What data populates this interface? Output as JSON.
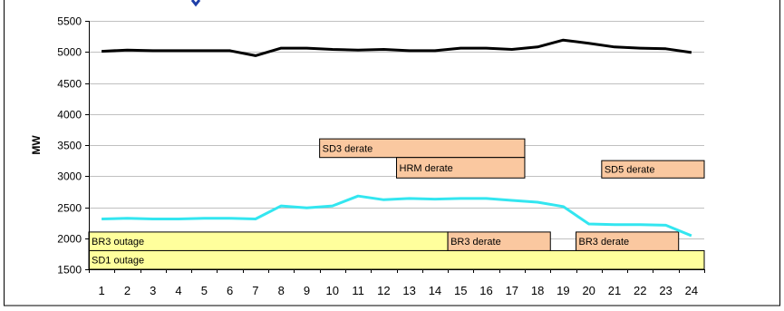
{
  "chart_data": {
    "type": "line",
    "title": "",
    "xlabel": "",
    "ylabel": "MW",
    "x": [
      1,
      2,
      3,
      4,
      5,
      6,
      7,
      8,
      9,
      10,
      11,
      12,
      13,
      14,
      15,
      16,
      17,
      18,
      19,
      20,
      21,
      22,
      23,
      24
    ],
    "ylim": [
      1500,
      5500
    ],
    "yticks": [
      1500,
      2000,
      2500,
      3000,
      3500,
      4000,
      4500,
      5000,
      5500
    ],
    "grid": true,
    "series": [
      {
        "name": "",
        "color": "#000000",
        "values": [
          5010,
          5030,
          5020,
          5020,
          5020,
          5020,
          4940,
          5060,
          5060,
          5040,
          5030,
          5040,
          5020,
          5020,
          5060,
          5060,
          5040,
          5080,
          5190,
          5140,
          5080,
          5060,
          5050,
          4990
        ]
      },
      {
        "name": "",
        "color": "#33e6f0",
        "values": [
          2310,
          2320,
          2310,
          2310,
          2320,
          2320,
          2310,
          2520,
          2490,
          2520,
          2680,
          2620,
          2640,
          2630,
          2640,
          2640,
          2610,
          2580,
          2510,
          2230,
          2220,
          2220,
          2210,
          2040
        ]
      }
    ],
    "annotations": [
      {
        "label": "SD3 derate",
        "x_start": 9.5,
        "x_end": 17.5,
        "y_low": 3300,
        "y_high": 3600,
        "color": "#fac8a0"
      },
      {
        "label": "HRM derate",
        "x_start": 12.5,
        "x_end": 17.5,
        "y_low": 2970,
        "y_high": 3300,
        "color": "#fac8a0"
      },
      {
        "label": "SD5 derate",
        "x_start": 20.5,
        "x_end": 24.5,
        "y_low": 2970,
        "y_high": 3250,
        "color": "#fac8a0"
      },
      {
        "label": "BR3 outage",
        "x_start": 0.5,
        "x_end": 14.5,
        "y_low": 1800,
        "y_high": 2100,
        "color": "#ffff9c"
      },
      {
        "label": "BR3 derate",
        "x_start": 14.5,
        "x_end": 18.5,
        "y_low": 1800,
        "y_high": 2100,
        "color": "#fac8a0"
      },
      {
        "label": "BR3 derate",
        "x_start": 19.5,
        "x_end": 23.5,
        "y_low": 1800,
        "y_high": 2100,
        "color": "#fac8a0"
      },
      {
        "label": "SD1 outage",
        "x_start": 0.5,
        "x_end": 24.5,
        "y_low": 1500,
        "y_high": 1800,
        "color": "#ffff9c"
      }
    ]
  }
}
